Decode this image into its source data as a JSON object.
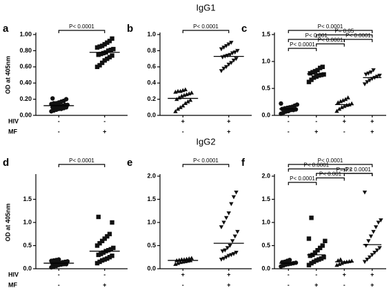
{
  "chart_data": [
    {
      "type": "dotplot",
      "panel": "a",
      "ylabel": "OD at 405nm",
      "row_labels": [
        "HIV",
        "MF"
      ],
      "ylim": [
        0,
        1.0
      ],
      "yticks": [
        {
          "value": 0,
          "label": "0.00"
        },
        {
          "value": 0.2,
          "label": "0.20"
        },
        {
          "value": 0.4,
          "label": "0.40"
        },
        {
          "value": 0.6,
          "label": "0.60"
        },
        {
          "value": 0.8,
          "label": "0.80"
        },
        {
          "value": 1.0,
          "label": "1.00"
        }
      ],
      "groups": [
        {
          "labels": [
            "-",
            "-"
          ],
          "marker": "circle",
          "mean": 0.12,
          "values": [
            0.05,
            0.06,
            0.07,
            0.08,
            0.08,
            0.09,
            0.1,
            0.1,
            0.11,
            0.11,
            0.12,
            0.12,
            0.13,
            0.13,
            0.14,
            0.15,
            0.15,
            0.16,
            0.17,
            0.18,
            0.2,
            0.21
          ]
        },
        {
          "labels": [
            "-",
            "+"
          ],
          "marker": "square",
          "mean": 0.78,
          "values": [
            0.6,
            0.62,
            0.65,
            0.68,
            0.7,
            0.72,
            0.74,
            0.75,
            0.76,
            0.77,
            0.78,
            0.8,
            0.81,
            0.82,
            0.84,
            0.85,
            0.86,
            0.88,
            0.9,
            0.92,
            0.95
          ]
        }
      ],
      "comparisons": [
        {
          "groups": [
            0,
            1
          ],
          "label": "P< 0.0001"
        }
      ]
    },
    {
      "type": "dotplot",
      "panel": "b",
      "title": "IgG1",
      "ylim": [
        0,
        1.0
      ],
      "yticks": [
        {
          "value": 0,
          "label": "0.0"
        },
        0.2,
        0.4,
        0.6,
        0.8,
        {
          "value": 1.0,
          "label": "1.0"
        }
      ],
      "groups": [
        {
          "labels": [
            "+",
            "-"
          ],
          "marker": "triangle-up",
          "mean": 0.21,
          "values": [
            0.05,
            0.08,
            0.1,
            0.12,
            0.15,
            0.17,
            0.19,
            0.2,
            0.22,
            0.24,
            0.25,
            0.26,
            0.27,
            0.28,
            0.29,
            0.3,
            0.3,
            0.31,
            0.32
          ]
        },
        {
          "labels": [
            "+",
            "+"
          ],
          "marker": "triangle-down",
          "mean": 0.73,
          "values": [
            0.55,
            0.58,
            0.6,
            0.63,
            0.65,
            0.68,
            0.7,
            0.72,
            0.73,
            0.74,
            0.75,
            0.77,
            0.78,
            0.8,
            0.82,
            0.84,
            0.86,
            0.88,
            0.9
          ]
        }
      ],
      "comparisons": [
        {
          "groups": [
            0,
            1
          ],
          "label": "P< 0.0001"
        }
      ]
    },
    {
      "type": "dotplot",
      "panel": "c",
      "ylim": [
        0,
        1.5
      ],
      "yticks": [
        {
          "value": 0,
          "label": "0.0"
        },
        0.5,
        {
          "value": 1.0,
          "label": "1.0"
        },
        1.5
      ],
      "groups": [
        {
          "labels": [
            "-",
            "-"
          ],
          "marker": "circle",
          "mean": 0.12,
          "values": [
            0.03,
            0.05,
            0.07,
            0.08,
            0.1,
            0.1,
            0.11,
            0.12,
            0.13,
            0.14,
            0.15,
            0.16,
            0.18,
            0.2,
            0.22
          ]
        },
        {
          "labels": [
            "-",
            "+"
          ],
          "marker": "square",
          "mean": 0.77,
          "values": [
            0.62,
            0.66,
            0.7,
            0.72,
            0.74,
            0.75,
            0.76,
            0.78,
            0.8,
            0.82,
            0.84,
            0.88,
            0.9
          ]
        },
        {
          "labels": [
            "+",
            "-"
          ],
          "marker": "triangle-up",
          "mean": 0.2,
          "values": [
            0.08,
            0.12,
            0.15,
            0.17,
            0.19,
            0.2,
            0.22,
            0.24,
            0.26,
            0.28,
            0.3,
            0.33
          ]
        },
        {
          "labels": [
            "+",
            "+"
          ],
          "marker": "triangle-down",
          "mean": 0.7,
          "values": [
            0.58,
            0.62,
            0.65,
            0.68,
            0.7,
            0.72,
            0.74,
            0.76,
            0.78,
            0.8,
            0.84
          ]
        }
      ],
      "comparisons": [
        {
          "groups": [
            0,
            1
          ],
          "label": "P< 0.0001"
        },
        {
          "groups": [
            1,
            2
          ],
          "label": "P< 0.0001"
        },
        {
          "groups": [
            2,
            3
          ],
          "label": "P< 0.0001"
        },
        {
          "groups": [
            0,
            2
          ],
          "label": "P< 0.001"
        },
        {
          "groups": [
            1,
            3
          ],
          "label": "P= 0.05"
        },
        {
          "groups": [
            0,
            3
          ],
          "label": "P< 0.0001"
        }
      ]
    },
    {
      "type": "dotplot",
      "panel": "d",
      "ylabel": "OD at 405nm",
      "row_labels": [
        "HIV",
        "MF"
      ],
      "ylim": [
        0,
        2.0
      ],
      "yticks": [
        {
          "value": 0,
          "label": "0.0"
        },
        0.5,
        {
          "value": 1.0,
          "label": "1.0"
        },
        1.5
      ],
      "groups": [
        {
          "labels": [
            "-",
            "-"
          ],
          "marker": "circle",
          "mean": 0.12,
          "values": [
            0.03,
            0.05,
            0.06,
            0.08,
            0.09,
            0.1,
            0.1,
            0.11,
            0.12,
            0.12,
            0.13,
            0.14,
            0.15,
            0.16,
            0.17,
            0.18,
            0.19,
            0.2
          ]
        },
        {
          "labels": [
            "-",
            "+"
          ],
          "marker": "square",
          "mean": 0.38,
          "values": [
            0.12,
            0.15,
            0.18,
            0.2,
            0.22,
            0.25,
            0.28,
            0.3,
            0.32,
            0.35,
            0.38,
            0.4,
            0.42,
            0.45,
            0.5,
            0.55,
            0.6,
            0.65,
            0.7,
            0.75,
            1.0,
            1.12
          ]
        }
      ],
      "comparisons": [
        {
          "groups": [
            0,
            1
          ],
          "label": "P< 0.0001"
        }
      ]
    },
    {
      "type": "dotplot",
      "panel": "e",
      "title": "IgG2",
      "ylim": [
        0,
        2.0
      ],
      "yticks": [
        {
          "value": 0,
          "label": "0.0"
        },
        0.5,
        {
          "value": 1.0,
          "label": "1.0"
        },
        1.5,
        {
          "value": 2.0,
          "label": "2.0"
        }
      ],
      "groups": [
        {
          "labels": [
            "+",
            "-"
          ],
          "marker": "triangle-up",
          "mean": 0.18,
          "values": [
            0.1,
            0.12,
            0.14,
            0.15,
            0.16,
            0.17,
            0.18,
            0.18,
            0.19,
            0.2,
            0.2,
            0.21,
            0.22,
            0.23
          ]
        },
        {
          "labels": [
            "+",
            "+"
          ],
          "marker": "triangle-down",
          "mean": 0.55,
          "values": [
            0.2,
            0.22,
            0.25,
            0.28,
            0.3,
            0.32,
            0.35,
            0.38,
            0.4,
            0.45,
            0.5,
            0.6,
            0.7,
            0.8,
            0.9,
            1.0,
            1.1,
            1.2,
            1.4,
            1.55,
            1.65
          ]
        }
      ],
      "comparisons": [
        {
          "groups": [
            0,
            1
          ],
          "label": "P< 0.0001"
        }
      ]
    },
    {
      "type": "dotplot",
      "panel": "f",
      "ylim": [
        0,
        2.0
      ],
      "yticks": [
        {
          "value": 0,
          "label": "0.0"
        },
        0.5,
        {
          "value": 1.0,
          "label": "1.0"
        },
        1.5,
        {
          "value": 2.0,
          "label": "2.0"
        }
      ],
      "groups": [
        {
          "labels": [
            "-",
            "-"
          ],
          "marker": "circle",
          "mean": 0.12,
          "values": [
            0.05,
            0.07,
            0.09,
            0.1,
            0.11,
            0.12,
            0.13,
            0.14,
            0.15,
            0.17,
            0.19
          ]
        },
        {
          "labels": [
            "-",
            "+"
          ],
          "marker": "square",
          "mean": 0.3,
          "values": [
            0.08,
            0.12,
            0.15,
            0.18,
            0.2,
            0.22,
            0.25,
            0.28,
            0.3,
            0.35,
            0.4,
            0.45,
            0.5,
            0.6,
            0.65,
            1.1
          ]
        },
        {
          "labels": [
            "+",
            "-"
          ],
          "marker": "triangle-up",
          "mean": 0.15,
          "values": [
            0.08,
            0.1,
            0.12,
            0.14,
            0.15,
            0.16,
            0.17,
            0.18,
            0.2
          ]
        },
        {
          "labels": [
            "+",
            "+"
          ],
          "marker": "triangle-down",
          "mean": 0.52,
          "values": [
            0.15,
            0.2,
            0.25,
            0.3,
            0.35,
            0.4,
            0.45,
            0.5,
            0.6,
            0.7,
            0.8,
            0.9,
            1.0,
            1.05,
            1.65
          ]
        }
      ],
      "comparisons": [
        {
          "groups": [
            0,
            1
          ],
          "label": "P< 0.0001"
        },
        {
          "groups": [
            1,
            2
          ],
          "label": "P< 0.001"
        },
        {
          "groups": [
            1,
            3
          ],
          "label": "P= 0.2"
        },
        {
          "groups": [
            0,
            2
          ],
          "label": "P< 0.0001"
        },
        {
          "groups": [
            2,
            3
          ],
          "label": "P< 0.0001"
        },
        {
          "groups": [
            0,
            3
          ],
          "label": "P< 0.0001"
        }
      ]
    }
  ]
}
